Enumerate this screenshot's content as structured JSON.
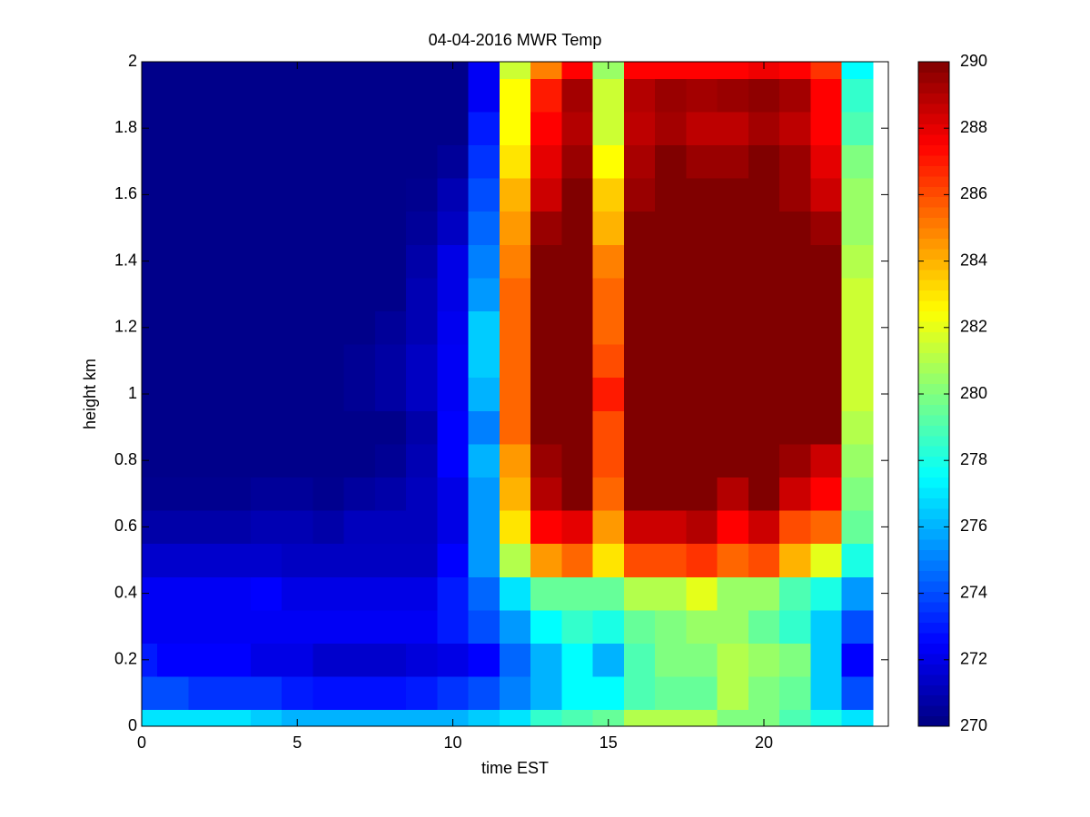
{
  "chart_data": {
    "type": "heatmap",
    "title": "04-04-2016 MWR Temp",
    "xlabel": "time EST",
    "ylabel": "height km",
    "colormap": "jet",
    "x": [
      0,
      1,
      2,
      3,
      4,
      5,
      6,
      7,
      8,
      9,
      10,
      11,
      12,
      13,
      14,
      15,
      16,
      17,
      18,
      19,
      20,
      21,
      22,
      23
    ],
    "y": [
      0,
      0.1,
      0.2,
      0.3,
      0.4,
      0.5,
      0.6,
      0.7,
      0.8,
      0.9,
      1,
      1.1,
      1.2,
      1.3,
      1.4,
      1.5,
      1.6,
      1.7,
      1.8,
      1.9,
      2
    ],
    "z": [
      [
        277,
        277,
        277,
        277,
        276.5,
        276,
        276,
        276,
        276,
        276,
        276,
        276.5,
        277,
        278.5,
        279,
        279.5,
        281,
        281,
        281,
        280,
        280,
        279,
        278,
        277
      ],
      [
        274,
        274,
        273.5,
        273.5,
        273.5,
        273,
        272.8,
        272.8,
        272.8,
        273,
        273.5,
        274,
        275,
        276,
        277.5,
        277.5,
        279,
        279.5,
        279.5,
        281,
        280,
        279.5,
        276.5,
        274
      ],
      [
        273,
        272.5,
        272.5,
        272.5,
        272,
        272,
        271.5,
        271.5,
        271.5,
        271.8,
        272,
        272.5,
        274.5,
        276,
        277.5,
        276,
        279,
        280,
        280,
        281,
        280.5,
        280,
        276.5,
        272.5
      ],
      [
        272.3,
        272.3,
        272.3,
        272.3,
        272.3,
        272.3,
        272.3,
        272.3,
        272.3,
        272.3,
        273,
        274,
        275.5,
        277.5,
        278.5,
        278,
        279.5,
        280,
        280.5,
        280.5,
        279.5,
        278.5,
        276.5,
        274
      ],
      [
        272.3,
        272.3,
        272.3,
        272.3,
        272.5,
        272,
        272,
        272,
        272,
        272,
        273,
        274.5,
        277,
        279.5,
        279.5,
        279.5,
        281,
        281,
        282,
        280.5,
        280.5,
        279,
        278,
        275.5
      ],
      [
        271.5,
        271.5,
        271.5,
        271.5,
        271.5,
        271.3,
        271.3,
        271.3,
        271.3,
        271.3,
        272.5,
        275.5,
        281,
        284.5,
        285.5,
        283,
        286,
        286,
        286.5,
        285.5,
        286,
        284,
        282,
        278
      ],
      [
        270.8,
        270.8,
        270.8,
        270.8,
        271,
        271,
        270.8,
        271.2,
        271.2,
        271.2,
        272,
        275.5,
        283,
        287.5,
        288,
        284.5,
        288.5,
        288.5,
        289,
        287.5,
        288.5,
        286,
        285.5,
        279.5
      ],
      [
        270.3,
        270.3,
        270.3,
        270.3,
        270.5,
        270.5,
        270.3,
        270.6,
        270.8,
        271.2,
        272,
        275.5,
        284,
        289,
        290,
        285.5,
        290,
        290,
        290,
        289,
        290,
        288.5,
        287.5,
        280
      ],
      [
        270.2,
        270.2,
        270.2,
        270.2,
        270.2,
        270.2,
        270.2,
        270.2,
        270.4,
        271,
        272.5,
        276,
        284.5,
        289.5,
        290,
        286,
        290,
        290,
        290,
        290,
        290,
        289.5,
        288.5,
        280.5
      ],
      [
        270.2,
        270.2,
        270.2,
        270.2,
        270.2,
        270.2,
        270.2,
        270.2,
        270.2,
        270.8,
        272.5,
        275,
        285.5,
        290,
        290,
        286,
        290,
        290,
        290,
        290,
        290,
        290,
        290,
        281
      ],
      [
        270.2,
        270.2,
        270.2,
        270.2,
        270.2,
        270.2,
        270.2,
        270.4,
        270.7,
        271.3,
        272.3,
        276,
        285.5,
        290,
        290,
        287,
        290,
        290,
        290,
        290,
        290,
        290,
        290,
        281.5
      ],
      [
        270.2,
        270.2,
        270.2,
        270.2,
        270.2,
        270.2,
        270.2,
        270.4,
        270.7,
        271.3,
        272.3,
        276.5,
        285.5,
        290,
        290,
        286,
        290,
        290,
        290,
        290,
        290,
        290,
        290,
        281.5
      ],
      [
        270.2,
        270.2,
        270.2,
        270.2,
        270.2,
        270.2,
        270.2,
        270.2,
        270.5,
        271,
        272.2,
        276.5,
        285.5,
        290,
        290,
        285.5,
        290,
        290,
        290,
        290,
        290,
        290,
        290,
        281.5
      ],
      [
        270.2,
        270.2,
        270.2,
        270.2,
        270.2,
        270.2,
        270.2,
        270.2,
        270.2,
        271,
        272,
        275.5,
        285.5,
        290,
        290,
        285.5,
        290,
        290,
        290,
        290,
        290,
        290,
        290,
        281.5
      ],
      [
        270.2,
        270.2,
        270.2,
        270.2,
        270.2,
        270.2,
        270.2,
        270.2,
        270.2,
        270.8,
        272,
        275,
        285,
        290,
        290,
        285,
        290,
        290,
        290,
        290,
        290,
        290,
        290,
        281
      ],
      [
        270.2,
        270.2,
        270.2,
        270.2,
        270.2,
        270.2,
        270.2,
        270.2,
        270.2,
        270.5,
        271.3,
        274.5,
        284.5,
        289.5,
        290,
        284,
        290,
        290,
        290,
        290,
        290,
        290,
        289.5,
        280.5
      ],
      [
        270.2,
        270.2,
        270.2,
        270.2,
        270.2,
        270.2,
        270.2,
        270.2,
        270.2,
        270.3,
        271,
        274,
        284,
        288.5,
        290,
        283.5,
        289.5,
        290,
        290,
        290,
        290,
        289.5,
        288.5,
        280.5
      ],
      [
        270.2,
        270.2,
        270.2,
        270.2,
        270.2,
        270.2,
        270.2,
        270.2,
        270.2,
        270.2,
        270.5,
        273.5,
        283,
        288,
        289.5,
        282.5,
        289.2,
        290,
        289.5,
        289.5,
        290,
        289.5,
        288,
        280
      ],
      [
        270.2,
        270.2,
        270.2,
        270.2,
        270.2,
        270.2,
        270.2,
        270.2,
        270.2,
        270.2,
        270.2,
        273,
        282.5,
        287.5,
        289,
        281.5,
        288.8,
        289.3,
        288.8,
        288.8,
        289.3,
        288.8,
        287.5,
        279
      ],
      [
        270.2,
        270.2,
        270.2,
        270.2,
        270.2,
        270.2,
        270.2,
        270.2,
        270.2,
        270.2,
        270.2,
        272.3,
        282.5,
        287,
        289.3,
        281.5,
        289,
        289.5,
        289.3,
        289.5,
        289.7,
        289.3,
        287.5,
        278.5
      ],
      [
        270.2,
        270.2,
        270.2,
        270.2,
        270.2,
        270.2,
        270.2,
        270.2,
        270.2,
        270.2,
        270.2,
        272.3,
        281.5,
        285,
        287.5,
        280.5,
        287.5,
        287.5,
        287.5,
        287.5,
        287.8,
        287.5,
        286.5,
        277.5
      ]
    ],
    "xlim": [
      0,
      24
    ],
    "xticks": [
      0,
      5,
      10,
      15,
      20
    ],
    "ylim": [
      0,
      2
    ],
    "yticks": [
      0,
      0.2,
      0.4,
      0.6,
      0.8,
      1,
      1.2,
      1.4,
      1.6,
      1.8,
      2
    ],
    "clim": [
      270,
      290
    ],
    "cticks": [
      270,
      272,
      274,
      276,
      278,
      280,
      282,
      284,
      286,
      288,
      290
    ]
  }
}
